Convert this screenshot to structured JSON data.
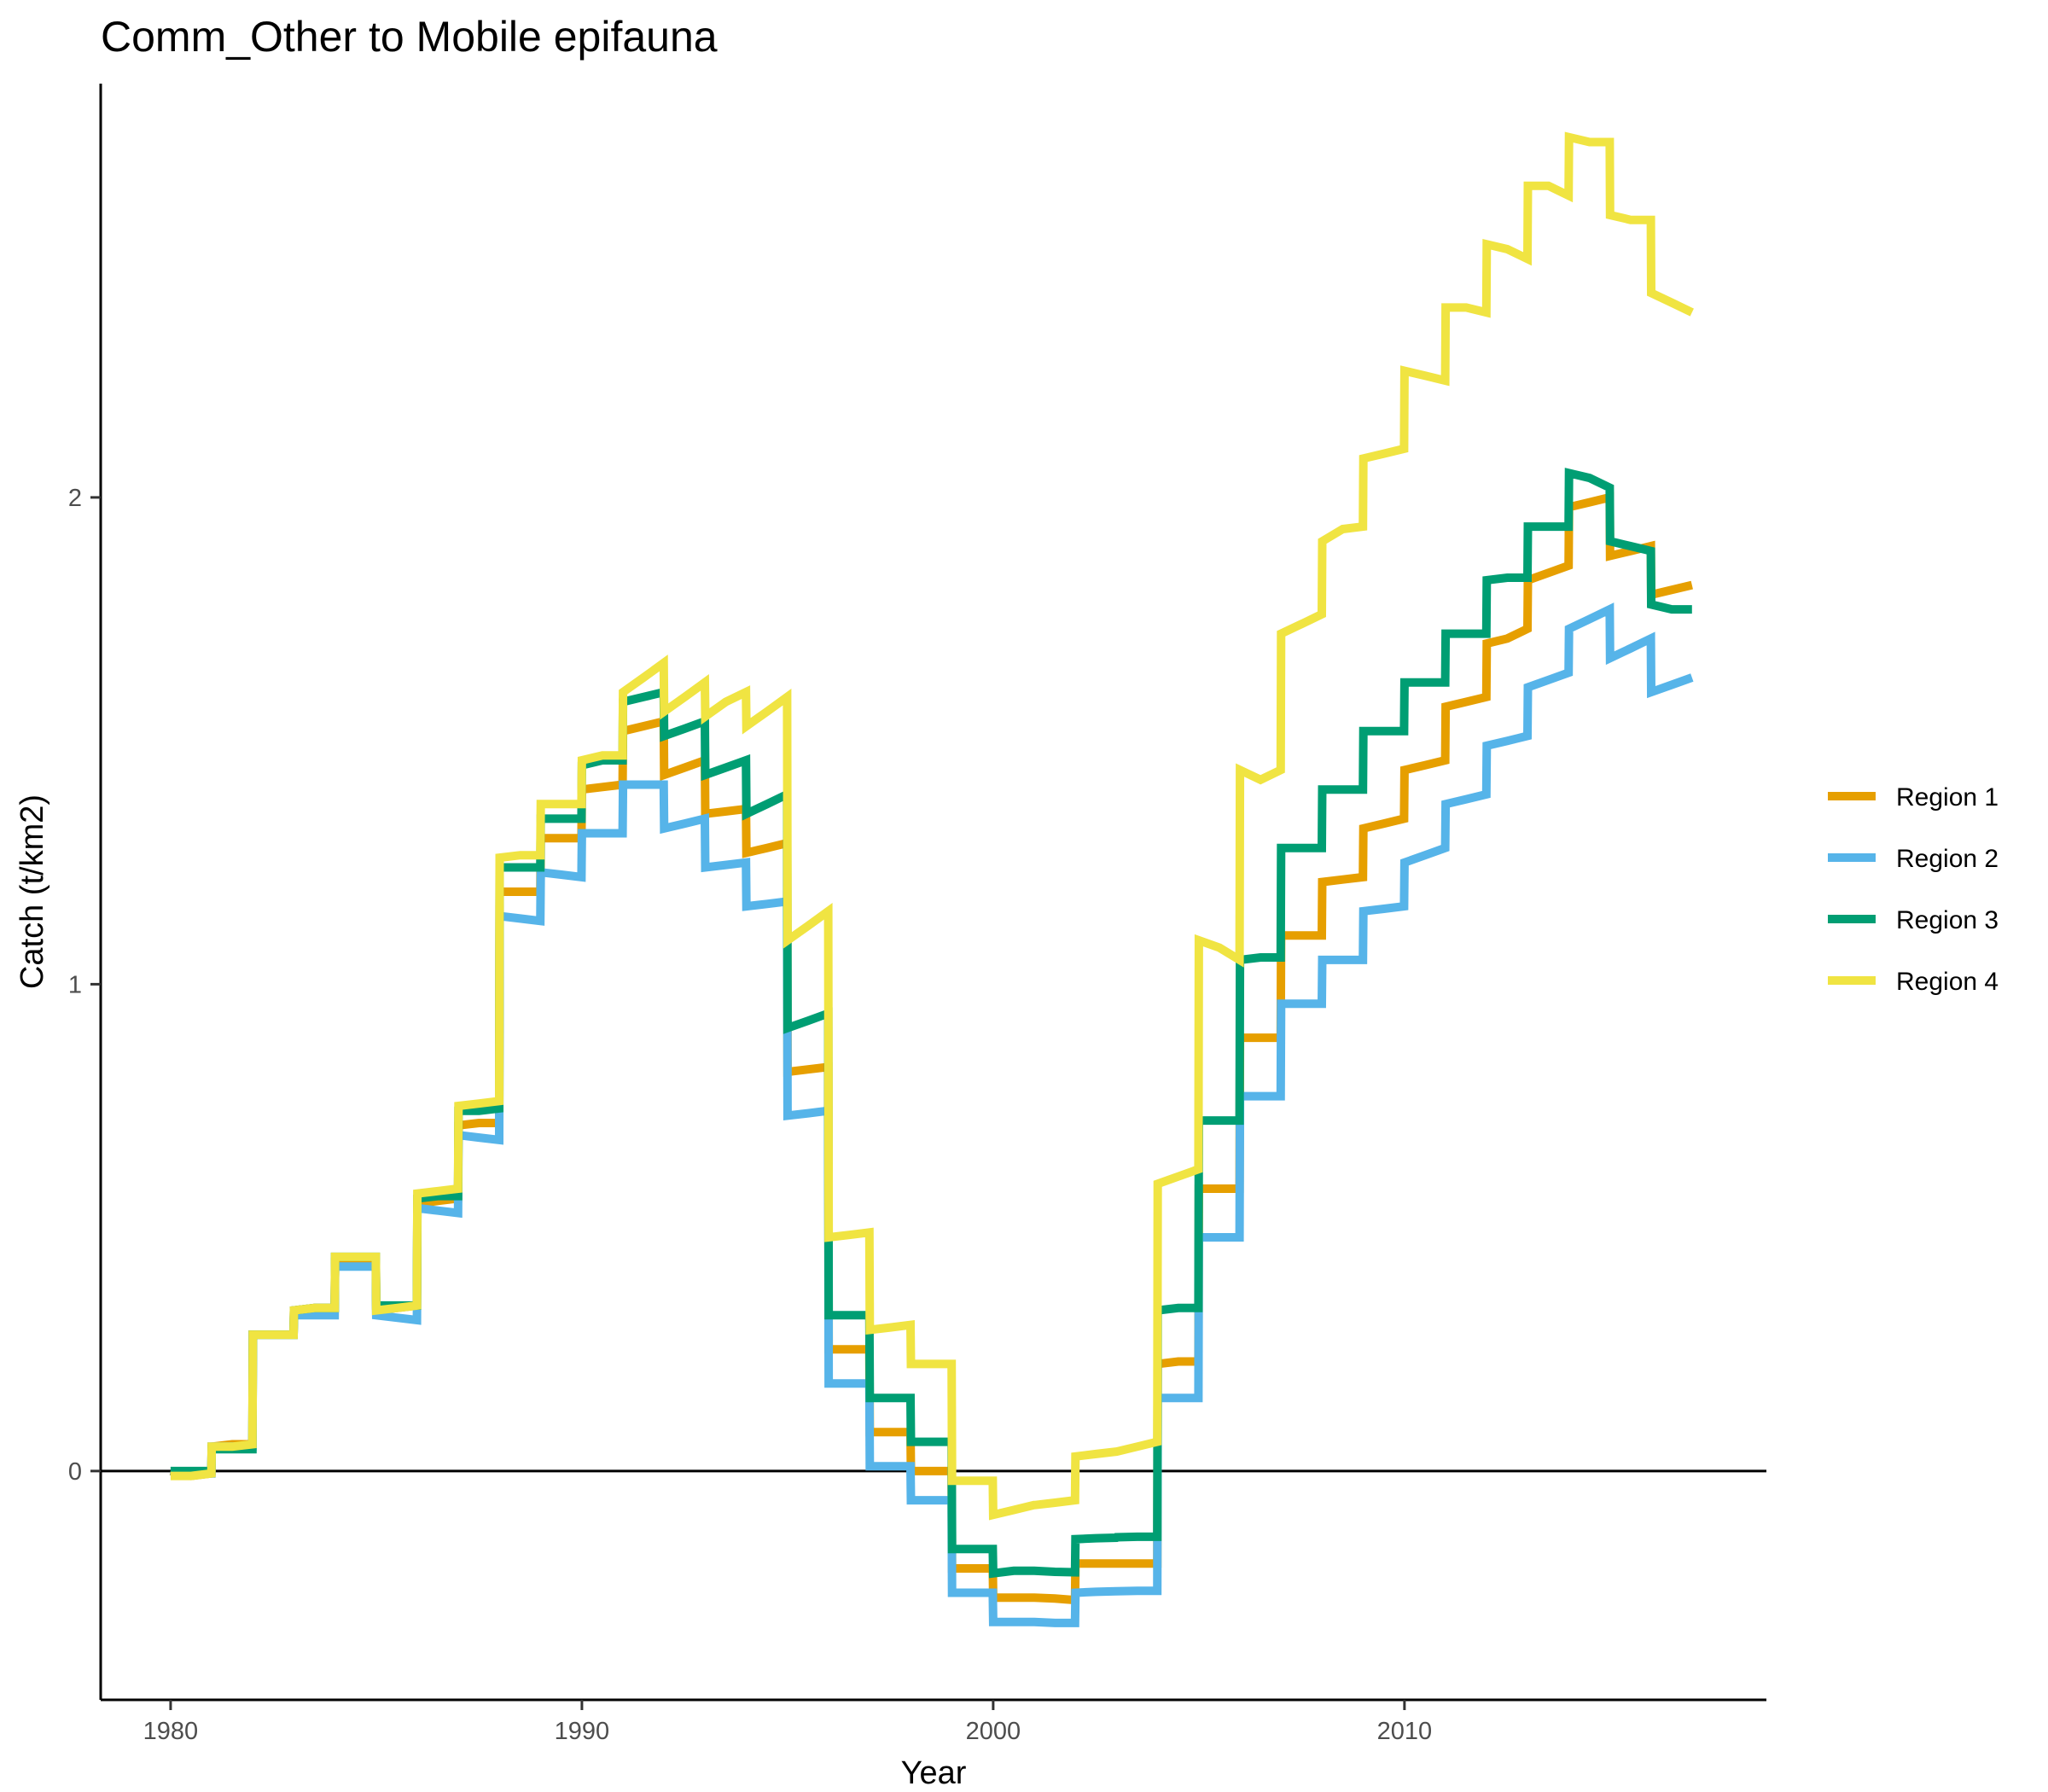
{
  "chart_data": {
    "type": "line",
    "title": "Comm_Other to Mobile epifauna",
    "xlabel": "Year",
    "ylabel": "Catch (t/km2)",
    "xlim": [
      1978.3,
      2018.8
    ],
    "ylim": [
      -0.47,
      2.85
    ],
    "xticks": [
      1980,
      1990,
      2000,
      2010
    ],
    "yticks": [
      0,
      1,
      2
    ],
    "hline": 0,
    "grid": false,
    "legend_position": "right",
    "colors": {
      "Region 1": "#E69F00",
      "Region 2": "#56B4E9",
      "Region 3": "#009E73",
      "Region 4": "#F0E442"
    },
    "x": [
      1980.0,
      1980.5,
      1980.99,
      1981.0,
      1981.5,
      1981.99,
      1982.0,
      1982.5,
      1982.99,
      1983.0,
      1983.5,
      1983.99,
      1984.0,
      1984.5,
      1984.99,
      1985.0,
      1985.5,
      1985.99,
      1986.0,
      1986.5,
      1986.99,
      1987.0,
      1987.5,
      1987.99,
      1988.0,
      1988.5,
      1988.99,
      1989.0,
      1989.5,
      1989.99,
      1990.0,
      1990.5,
      1990.99,
      1991.0,
      1991.5,
      1991.99,
      1992.0,
      1992.5,
      1992.99,
      1993.0,
      1993.5,
      1993.99,
      1994.0,
      1994.5,
      1994.99,
      1995.0,
      1995.5,
      1995.99,
      1996.0,
      1996.5,
      1996.99,
      1997.0,
      1997.5,
      1997.99,
      1998.0,
      1998.5,
      1998.99,
      1999.0,
      1999.5,
      1999.99,
      2000.0,
      2000.5,
      2000.99,
      2001.0,
      2001.5,
      2001.99,
      2002.0,
      2002.5,
      2002.99,
      2003.0,
      2003.5,
      2003.99,
      2004.0,
      2004.5,
      2004.99,
      2005.0,
      2005.5,
      2005.99,
      2006.0,
      2006.5,
      2006.99,
      2007.0,
      2007.5,
      2007.99,
      2008.0,
      2008.5,
      2008.99,
      2009.0,
      2009.5,
      2009.99,
      2010.0,
      2010.5,
      2010.99,
      2011.0,
      2011.5,
      2011.99,
      2012.0,
      2012.5,
      2012.99,
      2013.0,
      2013.5,
      2013.99,
      2014.0,
      2014.5,
      2014.99,
      2015.0,
      2015.5,
      2015.99,
      2016.0,
      2016.5,
      2016.99
    ],
    "series": [
      {
        "name": "Region 1",
        "values": [
          0.0,
          -0.01,
          -0.005,
          0.05,
          0.055,
          0.055,
          0.28,
          0.28,
          0.28,
          0.33,
          0.335,
          0.335,
          0.43,
          0.43,
          0.43,
          0.33,
          0.335,
          0.34,
          0.55,
          0.555,
          0.56,
          0.71,
          0.715,
          0.715,
          1.19,
          1.19,
          1.19,
          1.3,
          1.3,
          1.3,
          1.4,
          1.405,
          1.41,
          1.52,
          1.53,
          1.54,
          1.43,
          1.445,
          1.46,
          1.35,
          1.355,
          1.36,
          1.27,
          1.28,
          1.29,
          0.82,
          0.825,
          0.83,
          0.25,
          0.25,
          0.25,
          0.08,
          0.08,
          0.08,
          0.0,
          0.0,
          0.0,
          -0.2,
          -0.2,
          -0.2,
          -0.26,
          -0.26,
          -0.26,
          -0.26,
          -0.262,
          -0.265,
          -0.19,
          -0.19,
          -0.19,
          -0.19,
          -0.19,
          -0.19,
          0.22,
          0.225,
          0.225,
          0.58,
          0.58,
          0.58,
          0.89,
          0.89,
          0.89,
          1.1,
          1.1,
          1.1,
          1.21,
          1.215,
          1.22,
          1.32,
          1.33,
          1.34,
          1.44,
          1.45,
          1.46,
          1.57,
          1.58,
          1.59,
          1.7,
          1.71,
          1.73,
          1.83,
          1.845,
          1.86,
          1.98,
          1.99,
          2.0,
          1.88,
          1.89,
          1.9,
          1.8,
          1.81,
          1.82
        ]
      },
      {
        "name": "Region 2",
        "values": [
          0.0,
          -0.005,
          -0.005,
          0.05,
          0.05,
          0.05,
          0.28,
          0.28,
          0.28,
          0.32,
          0.32,
          0.32,
          0.42,
          0.42,
          0.42,
          0.32,
          0.315,
          0.31,
          0.54,
          0.535,
          0.53,
          0.69,
          0.685,
          0.68,
          1.14,
          1.135,
          1.13,
          1.23,
          1.225,
          1.22,
          1.31,
          1.31,
          1.31,
          1.41,
          1.41,
          1.41,
          1.32,
          1.33,
          1.34,
          1.24,
          1.245,
          1.25,
          1.16,
          1.165,
          1.17,
          0.73,
          0.735,
          0.74,
          0.18,
          0.18,
          0.18,
          0.01,
          0.01,
          0.01,
          -0.06,
          -0.06,
          -0.06,
          -0.25,
          -0.25,
          -0.25,
          -0.31,
          -0.31,
          -0.31,
          -0.31,
          -0.312,
          -0.312,
          -0.25,
          -0.248,
          -0.247,
          -0.247,
          -0.246,
          -0.246,
          0.15,
          0.15,
          0.15,
          0.48,
          0.48,
          0.48,
          0.77,
          0.77,
          0.77,
          0.96,
          0.96,
          0.96,
          1.05,
          1.05,
          1.05,
          1.15,
          1.155,
          1.16,
          1.25,
          1.265,
          1.28,
          1.37,
          1.38,
          1.39,
          1.49,
          1.5,
          1.51,
          1.61,
          1.625,
          1.64,
          1.73,
          1.75,
          1.77,
          1.67,
          1.69,
          1.71,
          1.6,
          1.615,
          1.63
        ]
      },
      {
        "name": "Region 3",
        "values": [
          0.0,
          0.0,
          0.0,
          0.045,
          0.045,
          0.045,
          0.28,
          0.28,
          0.28,
          0.33,
          0.335,
          0.335,
          0.44,
          0.44,
          0.44,
          0.34,
          0.34,
          0.34,
          0.56,
          0.565,
          0.565,
          0.74,
          0.74,
          0.745,
          1.24,
          1.24,
          1.24,
          1.34,
          1.34,
          1.34,
          1.45,
          1.46,
          1.46,
          1.58,
          1.59,
          1.6,
          1.51,
          1.525,
          1.54,
          1.43,
          1.445,
          1.46,
          1.35,
          1.37,
          1.39,
          0.91,
          0.925,
          0.94,
          0.32,
          0.32,
          0.32,
          0.15,
          0.15,
          0.15,
          0.06,
          0.06,
          0.06,
          -0.16,
          -0.16,
          -0.16,
          -0.21,
          -0.205,
          -0.205,
          -0.205,
          -0.207,
          -0.208,
          -0.14,
          -0.138,
          -0.137,
          -0.136,
          -0.135,
          -0.135,
          0.33,
          0.335,
          0.335,
          0.72,
          0.72,
          0.72,
          1.05,
          1.055,
          1.055,
          1.28,
          1.28,
          1.28,
          1.4,
          1.4,
          1.4,
          1.52,
          1.52,
          1.52,
          1.62,
          1.62,
          1.62,
          1.72,
          1.72,
          1.72,
          1.83,
          1.835,
          1.835,
          1.94,
          1.94,
          1.94,
          2.05,
          2.04,
          2.02,
          1.91,
          1.9,
          1.89,
          1.78,
          1.77,
          1.77
        ]
      },
      {
        "name": "Region 4",
        "values": [
          -0.01,
          -0.01,
          -0.005,
          0.05,
          0.05,
          0.055,
          0.28,
          0.28,
          0.28,
          0.33,
          0.335,
          0.335,
          0.44,
          0.44,
          0.44,
          0.33,
          0.335,
          0.34,
          0.57,
          0.575,
          0.58,
          0.75,
          0.755,
          0.76,
          1.26,
          1.265,
          1.265,
          1.37,
          1.37,
          1.37,
          1.46,
          1.47,
          1.47,
          1.6,
          1.63,
          1.66,
          1.56,
          1.59,
          1.62,
          1.55,
          1.58,
          1.6,
          1.53,
          1.56,
          1.59,
          1.09,
          1.12,
          1.15,
          0.48,
          0.485,
          0.49,
          0.29,
          0.295,
          0.3,
          0.22,
          0.22,
          0.22,
          -0.02,
          -0.02,
          -0.02,
          -0.09,
          -0.08,
          -0.07,
          -0.07,
          -0.065,
          -0.06,
          0.03,
          0.035,
          0.04,
          0.04,
          0.05,
          0.06,
          0.59,
          0.605,
          0.62,
          1.09,
          1.075,
          1.05,
          1.44,
          1.42,
          1.44,
          1.72,
          1.74,
          1.76,
          1.91,
          1.935,
          1.94,
          2.08,
          2.09,
          2.1,
          2.26,
          2.25,
          2.24,
          2.39,
          2.39,
          2.38,
          2.52,
          2.51,
          2.49,
          2.64,
          2.64,
          2.62,
          2.74,
          2.73,
          2.73,
          2.58,
          2.57,
          2.57,
          2.42,
          2.4,
          2.38
        ]
      }
    ]
  }
}
